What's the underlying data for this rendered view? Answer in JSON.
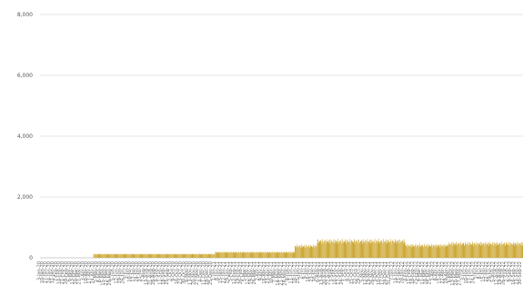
{
  "chart_data": {
    "type": "bar",
    "title": "",
    "xlabel": "",
    "ylabel": "",
    "ylim": [
      0,
      8000
    ],
    "y_ticks": [
      "0",
      "2,000",
      "4,000",
      "6,000",
      "8,000"
    ],
    "grid": "horizontal",
    "legend": "none",
    "color": "#c9a227",
    "x_start": "3-Jan-20",
    "x_end": "3-Oct-22",
    "x_step_days": 1,
    "segments": [
      {
        "from": "3-Jan-20",
        "to": "22-Apr-20",
        "value": 0
      },
      {
        "from": "23-Apr-20",
        "to": "31-Dec-20",
        "value": 120
      },
      {
        "from": "1-Jan-21",
        "to": "15-Jun-21",
        "value": 180
      },
      {
        "from": "16-Jun-21",
        "to": "31-Jul-21",
        "value": 380
      },
      {
        "from": "1-Aug-21",
        "to": "31-Jan-22",
        "value": 540
      },
      {
        "from": "1-Feb-22",
        "to": "30-Apr-22",
        "value": 400
      },
      {
        "from": "1-May-22",
        "to": "3-Oct-22",
        "value": 460
      }
    ]
  }
}
